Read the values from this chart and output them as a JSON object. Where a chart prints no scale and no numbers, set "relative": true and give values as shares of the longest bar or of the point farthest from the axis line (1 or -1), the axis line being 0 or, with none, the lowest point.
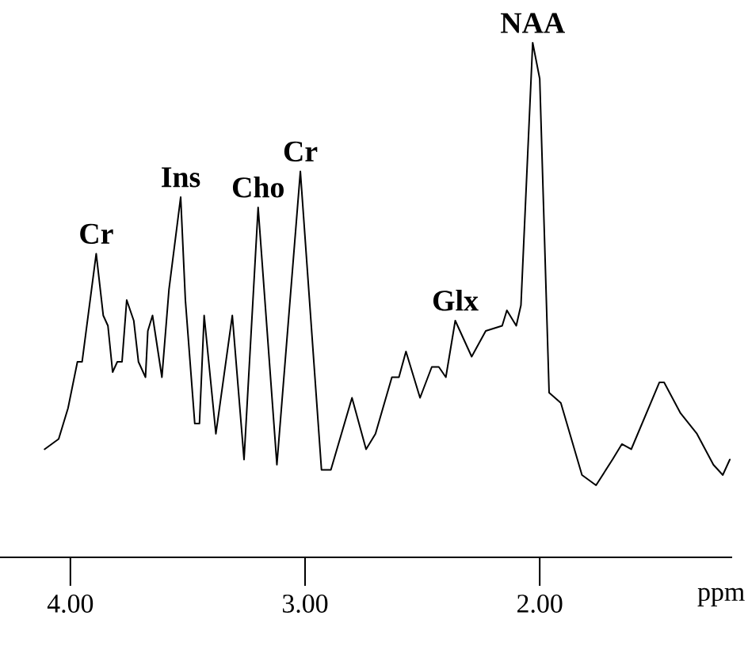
{
  "chart_data": {
    "type": "line",
    "relative": true,
    "xlabel": "ppm",
    "xlim": [
      4.3,
      1.18
    ],
    "xticks": [
      {
        "value": 4,
        "label": "4.00"
      },
      {
        "value": 3,
        "label": "3.00"
      },
      {
        "value": 2,
        "label": "2.00"
      }
    ],
    "x": [
      4.11,
      4.05,
      4.01,
      3.97,
      3.95,
      3.89,
      3.86,
      3.84,
      3.82,
      3.8,
      3.78,
      3.76,
      3.73,
      3.71,
      3.68,
      3.67,
      3.65,
      3.61,
      3.58,
      3.53,
      3.51,
      3.47,
      3.45,
      3.43,
      3.38,
      3.31,
      3.26,
      3.2,
      3.12,
      3.02,
      2.93,
      2.89,
      2.8,
      2.74,
      2.7,
      2.63,
      2.6,
      2.57,
      2.51,
      2.46,
      2.43,
      2.4,
      2.36,
      2.34,
      2.29,
      2.23,
      2.16,
      2.14,
      2.1,
      2.08,
      2.03,
      2.0,
      1.96,
      1.91,
      1.82,
      1.76,
      1.69,
      1.65,
      1.61,
      1.49,
      1.47,
      1.4,
      1.33,
      1.26,
      1.22,
      1.19
    ],
    "series": [
      {
        "color": "#000000",
        "values": [
          0.21,
          0.23,
          0.29,
          0.38,
          0.38,
          0.59,
          0.47,
          0.45,
          0.36,
          0.38,
          0.38,
          0.5,
          0.46,
          0.38,
          0.35,
          0.44,
          0.47,
          0.35,
          0.52,
          0.7,
          0.5,
          0.26,
          0.26,
          0.47,
          0.24,
          0.47,
          0.19,
          0.68,
          0.18,
          0.75,
          0.17,
          0.17,
          0.31,
          0.21,
          0.24,
          0.35,
          0.35,
          0.4,
          0.31,
          0.37,
          0.37,
          0.35,
          0.46,
          0.44,
          0.39,
          0.44,
          0.45,
          0.48,
          0.45,
          0.49,
          1.0,
          0.93,
          0.32,
          0.3,
          0.16,
          0.14,
          0.19,
          0.22,
          0.21,
          0.34,
          0.34,
          0.28,
          0.24,
          0.18,
          0.16,
          0.19
        ]
      }
    ],
    "annotations": [
      {
        "text": "Cr",
        "x": 3.89,
        "y": 0.59
      },
      {
        "text": "Ins",
        "x": 3.53,
        "y": 0.7
      },
      {
        "text": "Cho",
        "x": 3.2,
        "y": 0.68
      },
      {
        "text": "Cr",
        "x": 3.02,
        "y": 0.75
      },
      {
        "text": "Glx",
        "x": 2.36,
        "y": 0.46
      },
      {
        "text": "NAA",
        "x": 2.03,
        "y": 1.0
      }
    ]
  }
}
